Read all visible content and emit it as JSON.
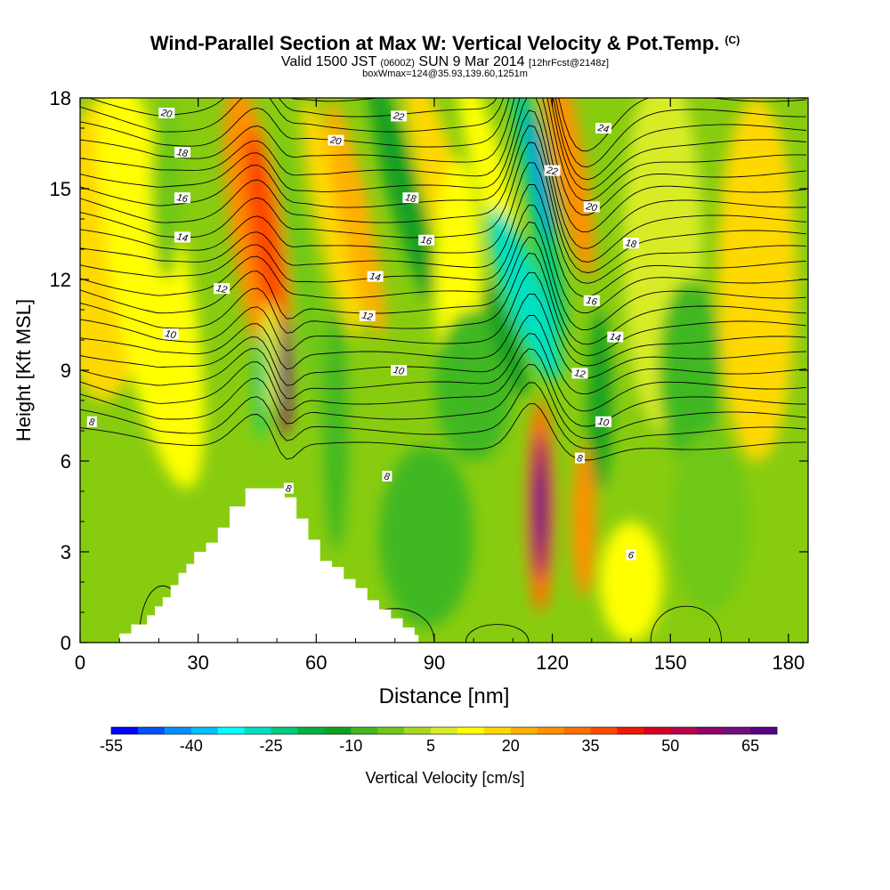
{
  "title": {
    "main": "Wind-Parallel Section at Max W: Vertical Velocity & Pot.Temp.",
    "copyright": "(C)",
    "line2_a": "Valid 1500 JST",
    "line2_b": "(0600Z)",
    "line2_c": "SUN 9 Mar 2014",
    "line2_d": "[12hrFcst@2148z]",
    "line3": "boxWmax=124@35.93,139.60,1251m"
  },
  "chart_data": {
    "type": "heatmap",
    "xlabel": "Distance [nm]",
    "ylabel": "Height [Kft MSL]",
    "xlim": [
      0,
      185
    ],
    "ylim": [
      0,
      18
    ],
    "xticks": [
      0,
      30,
      60,
      90,
      120,
      150,
      180
    ],
    "yticks": [
      0,
      3,
      6,
      9,
      12,
      15,
      18
    ],
    "colorbar": {
      "label": "Vertical Velocity [cm/s]",
      "min": -55,
      "max": 70,
      "step": 5,
      "tick_labels": [
        "-55",
        "-40",
        "-25",
        "-10",
        "5",
        "20",
        "35",
        "50",
        "65"
      ],
      "colors": [
        "#0000ff",
        "#0050ff",
        "#0090ff",
        "#00c0ff",
        "#00ffff",
        "#00e0c0",
        "#00cc80",
        "#00b040",
        "#12a020",
        "#40b820",
        "#70c818",
        "#a8d820",
        "#d8ec28",
        "#ffff00",
        "#ffd800",
        "#ffb000",
        "#ff9000",
        "#ff7000",
        "#ff4800",
        "#f01800",
        "#d80020",
        "#b8004a",
        "#900068",
        "#701080",
        "#580088"
      ]
    },
    "velocity_features": [
      {
        "x": 47,
        "y": 13.5,
        "value": 35
      },
      {
        "x": 52,
        "y": 9.0,
        "value": 70
      },
      {
        "x": 117,
        "y": 4.5,
        "value": 70
      },
      {
        "x": 117,
        "y": 14.5,
        "value": -45
      },
      {
        "x": 113,
        "y": 11.5,
        "value": -30
      },
      {
        "x": 46,
        "y": 8.5,
        "value": -30
      },
      {
        "x": 128,
        "y": 4.0,
        "value": 25
      },
      {
        "x": 72,
        "y": 14.0,
        "value": 20
      },
      {
        "x": 15,
        "y": 14.0,
        "value": 15
      }
    ],
    "contour_labels": [
      {
        "text": "20",
        "x": 22,
        "y": 17.5
      },
      {
        "text": "18",
        "x": 26,
        "y": 16.2
      },
      {
        "text": "16",
        "x": 26,
        "y": 14.7
      },
      {
        "text": "14",
        "x": 26,
        "y": 13.4
      },
      {
        "text": "12",
        "x": 36,
        "y": 11.7
      },
      {
        "text": "10",
        "x": 23,
        "y": 10.2
      },
      {
        "text": "8",
        "x": 3,
        "y": 7.3
      },
      {
        "text": "22",
        "x": 81,
        "y": 17.4
      },
      {
        "text": "20",
        "x": 65,
        "y": 16.6
      },
      {
        "text": "18",
        "x": 84,
        "y": 14.7
      },
      {
        "text": "16",
        "x": 88,
        "y": 13.3
      },
      {
        "text": "14",
        "x": 75,
        "y": 12.1
      },
      {
        "text": "12",
        "x": 73,
        "y": 10.8
      },
      {
        "text": "10",
        "x": 81,
        "y": 9.0
      },
      {
        "text": "8",
        "x": 78,
        "y": 5.5
      },
      {
        "text": "8",
        "x": 53,
        "y": 5.1
      },
      {
        "text": "24",
        "x": 133,
        "y": 17.0
      },
      {
        "text": "22",
        "x": 120,
        "y": 15.6
      },
      {
        "text": "20",
        "x": 130,
        "y": 14.4
      },
      {
        "text": "18",
        "x": 140,
        "y": 13.2
      },
      {
        "text": "16",
        "x": 130,
        "y": 11.3
      },
      {
        "text": "14",
        "x": 136,
        "y": 10.1
      },
      {
        "text": "12",
        "x": 127,
        "y": 8.9
      },
      {
        "text": "10",
        "x": 133,
        "y": 7.3
      },
      {
        "text": "8",
        "x": 127,
        "y": 6.1
      },
      {
        "text": "6",
        "x": 140,
        "y": 2.9
      }
    ],
    "terrain_steps": [
      [
        10,
        0.3
      ],
      [
        13,
        0.6
      ],
      [
        17,
        0.9
      ],
      [
        19,
        1.2
      ],
      [
        21,
        1.5
      ],
      [
        23,
        1.9
      ],
      [
        25,
        2.3
      ],
      [
        27,
        2.6
      ],
      [
        29,
        3.0
      ],
      [
        32,
        3.3
      ],
      [
        35,
        3.8
      ],
      [
        38,
        4.5
      ],
      [
        42,
        5.1
      ],
      [
        51,
        5.1
      ],
      [
        52,
        4.8
      ],
      [
        55,
        4.1
      ],
      [
        58,
        3.4
      ],
      [
        61,
        2.7
      ],
      [
        64,
        2.5
      ],
      [
        67,
        2.1
      ],
      [
        70,
        1.8
      ],
      [
        73,
        1.4
      ],
      [
        76,
        1.1
      ],
      [
        79,
        0.8
      ],
      [
        82,
        0.5
      ],
      [
        85,
        0.25
      ],
      [
        86,
        0
      ]
    ]
  }
}
